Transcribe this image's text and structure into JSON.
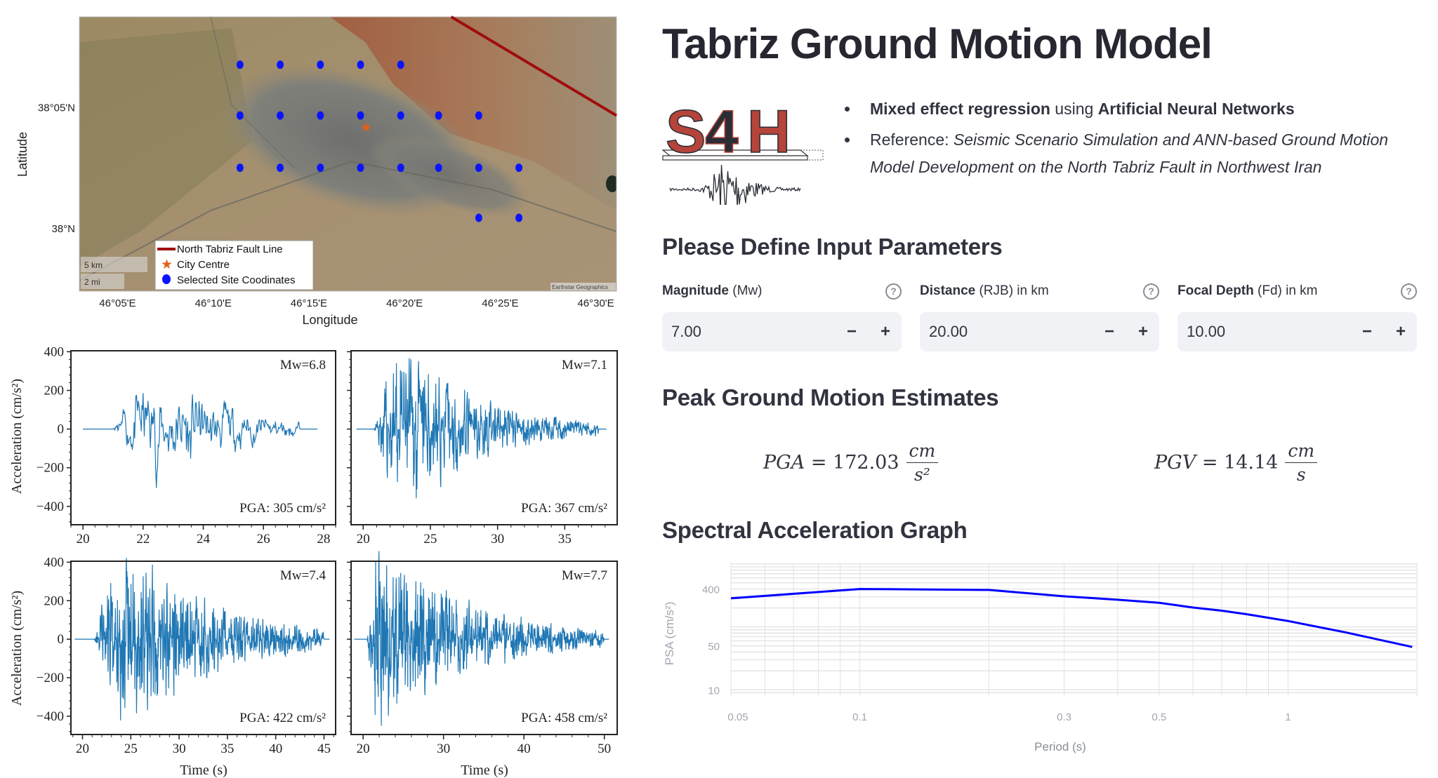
{
  "header": {
    "title": "Tabriz Ground Motion Model"
  },
  "logo": {
    "text": "S4H",
    "colors": {
      "brick": "#b5443a",
      "dark": "#2a2d36"
    }
  },
  "intro": {
    "bullet1": {
      "bold1": "Mixed effect regression",
      "mid": " using ",
      "bold2": "Artificial Neural Networks"
    },
    "bullet2": {
      "prefix": "Reference: ",
      "ref": "Seismic Scenario Simulation and ANN-based Ground Motion Model Development on the North Tabriz Fault in Northwest Iran"
    }
  },
  "inputs": {
    "heading": "Please Define Input Parameters",
    "fields": [
      {
        "label_bold": "Magnitude",
        "label_rest": " (Mw)",
        "value": "7.00",
        "minus": "−",
        "plus": "+",
        "help": "?"
      },
      {
        "label_bold": "Distance",
        "label_rest": " (RJB) in km",
        "value": "20.00",
        "minus": "−",
        "plus": "+",
        "help": "?"
      },
      {
        "label_bold": "Focal Depth",
        "label_rest": " (Fd) in km",
        "value": "10.00",
        "minus": "−",
        "plus": "+",
        "help": "?"
      }
    ]
  },
  "estimates": {
    "heading": "Peak Ground Motion Estimates",
    "pga": {
      "symbol": "PGA",
      "eq": " = ",
      "value": "172.03",
      "num": "cm",
      "den": "s²"
    },
    "pgv": {
      "symbol": "PGV",
      "eq": " = ",
      "value": "14.14",
      "num": "cm",
      "den": "s"
    }
  },
  "spectral": {
    "heading": "Spectral Acceleration Graph"
  },
  "chart_data": [
    {
      "type": "map",
      "xlabel": "Longitude",
      "ylabel": "Latitude",
      "xlim": [
        46.05,
        46.518
      ],
      "ylim": [
        37.957,
        38.146
      ],
      "xticks": [
        {
          "v": 46.0833,
          "label": "46°05'E"
        },
        {
          "v": 46.1667,
          "label": "46°10'E"
        },
        {
          "v": 46.25,
          "label": "46°15'E"
        },
        {
          "v": 46.3333,
          "label": "46°20'E"
        },
        {
          "v": 46.4167,
          "label": "46°25'E"
        },
        {
          "v": 46.5,
          "label": "46°30'E"
        }
      ],
      "yticks": [
        {
          "v": 38.0833,
          "label": "38°05'N"
        },
        {
          "v": 38.0,
          "label": "38°N"
        }
      ],
      "fault_line": {
        "name": "North Tabriz Fault Line",
        "color": "#a00d0d",
        "points": [
          [
            46.374,
            38.146
          ],
          [
            46.518,
            38.078
          ]
        ]
      },
      "city_centre": {
        "name": "City Centre",
        "color": "#e0601c",
        "point": [
          46.3,
          38.07
        ]
      },
      "sites": {
        "name": "Selected Site Coodinates",
        "color": "#0a14ff",
        "points": [
          [
            46.19,
            38.113
          ],
          [
            46.225,
            38.113
          ],
          [
            46.26,
            38.113
          ],
          [
            46.295,
            38.113
          ],
          [
            46.33,
            38.113
          ],
          [
            46.19,
            38.078
          ],
          [
            46.225,
            38.078
          ],
          [
            46.26,
            38.078
          ],
          [
            46.295,
            38.078
          ],
          [
            46.33,
            38.078
          ],
          [
            46.363,
            38.078
          ],
          [
            46.398,
            38.078
          ],
          [
            46.19,
            38.042
          ],
          [
            46.225,
            38.042
          ],
          [
            46.26,
            38.042
          ],
          [
            46.295,
            38.042
          ],
          [
            46.33,
            38.042
          ],
          [
            46.363,
            38.042
          ],
          [
            46.398,
            38.042
          ],
          [
            46.433,
            38.042
          ],
          [
            46.398,
            38.0075
          ],
          [
            46.433,
            38.0075
          ]
        ]
      },
      "scale_bar": {
        "km": "5 km",
        "mi": "2 mi"
      },
      "attribution": "Earthstar Geographics",
      "legend": "bottom-left"
    },
    {
      "type": "line",
      "ylabel": "Acceleration (cm/s²)",
      "xlabel": "Time (s)",
      "ylim": [
        -495,
        405
      ],
      "yticks": [
        400,
        200,
        0,
        -200,
        -400
      ],
      "color": "#1f77b4",
      "panels": [
        {
          "label": "Mw=6.8",
          "pga": "PGA: 305 cm/s²",
          "xlim": [
            19.6,
            28.4
          ],
          "xticks": [
            20,
            22,
            24,
            26,
            28
          ]
        },
        {
          "label": "Mw=7.1",
          "pga": "PGA: 367 cm/s²",
          "xlim": [
            19.1,
            38.9
          ],
          "xticks": [
            20,
            25,
            30,
            35
          ]
        },
        {
          "label": "Mw=7.4",
          "pga": "PGA: 422 cm/s²",
          "xlim": [
            18.8,
            46.2
          ],
          "xticks": [
            20,
            25,
            30,
            35,
            40,
            45
          ]
        },
        {
          "label": "Mw=7.7",
          "pga": "PGA: 458 cm/s²",
          "xlim": [
            18.5,
            51.6
          ],
          "xticks": [
            20,
            30,
            40,
            50
          ]
        }
      ]
    },
    {
      "type": "line",
      "xlabel": "Period (s)",
      "ylabel": "PSA (cm/s²)",
      "xscale": "log",
      "yscale": "log",
      "xlim": [
        0.05,
        2.0
      ],
      "ylim": [
        8,
        1050
      ],
      "xticks": [
        0.05,
        0.1,
        0.3,
        0.5,
        1
      ],
      "yticks": [
        10,
        50,
        400
      ],
      "grid": true,
      "color": "#0000ff",
      "x": [
        0.05,
        0.1,
        0.2,
        0.3,
        0.4,
        0.5,
        0.6,
        0.7,
        0.8,
        1.0,
        1.36,
        1.95
      ],
      "y": [
        284,
        400,
        387,
        306,
        270,
        242,
        203,
        181,
        159,
        124,
        82,
        48
      ]
    }
  ]
}
